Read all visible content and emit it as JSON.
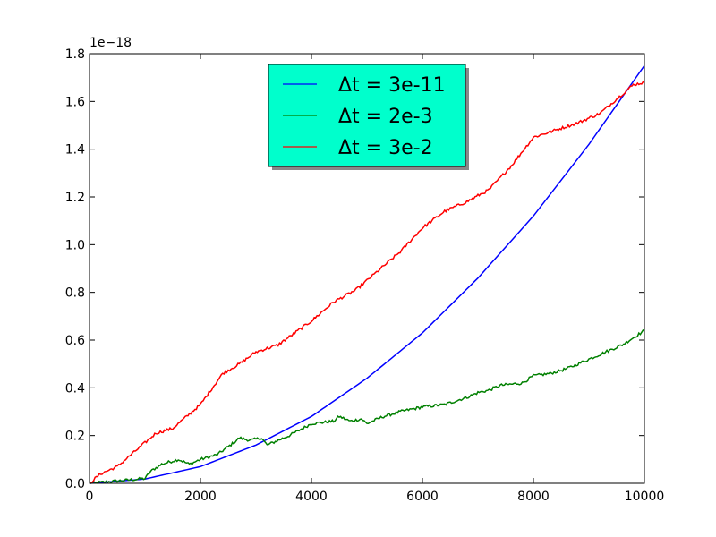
{
  "chart_data": {
    "type": "line",
    "title": "",
    "xlabel": "",
    "ylabel": "",
    "offset_text": "1e−18",
    "xlim": [
      0,
      10000
    ],
    "ylim": [
      0,
      1.8
    ],
    "x_ticks": [
      0,
      2000,
      4000,
      6000,
      8000,
      10000
    ],
    "x_tick_labels": [
      "0",
      "2000",
      "4000",
      "6000",
      "8000",
      "10000"
    ],
    "y_ticks": [
      0,
      0.2,
      0.4,
      0.6,
      0.8,
      1.0,
      1.2,
      1.4,
      1.6,
      1.8
    ],
    "y_tick_labels": [
      "0.0",
      "0.2",
      "0.4",
      "0.6",
      "0.8",
      "1.0",
      "1.2",
      "1.4",
      "1.6",
      "1.8"
    ],
    "grid": false,
    "legend_position": "top-center",
    "legend_bg": "#00ffcc",
    "series": [
      {
        "name": "Δt = 3e-11",
        "color": "#0000ff",
        "x": [
          0,
          1000,
          2000,
          3000,
          4000,
          5000,
          6000,
          7000,
          8000,
          9000,
          10000
        ],
        "values": [
          0.0,
          0.018,
          0.07,
          0.16,
          0.28,
          0.44,
          0.63,
          0.86,
          1.12,
          1.42,
          1.75
        ]
      },
      {
        "name": "Δt = 2e-3",
        "color": "#008000",
        "x": [
          0,
          500,
          1000,
          1100,
          1300,
          1600,
          1800,
          2000,
          2300,
          2600,
          2700,
          2900,
          3100,
          3200,
          3600,
          4000,
          4400,
          4500,
          4700,
          4900,
          5000,
          5300,
          5600,
          6000,
          6400,
          6800,
          7000,
          7200,
          7400,
          7800,
          8000,
          8300,
          8600,
          8800,
          9200,
          9600,
          9800,
          10000
        ],
        "values": [
          0.0,
          0.01,
          0.02,
          0.05,
          0.08,
          0.1,
          0.08,
          0.1,
          0.12,
          0.17,
          0.19,
          0.18,
          0.19,
          0.16,
          0.2,
          0.25,
          0.26,
          0.28,
          0.26,
          0.27,
          0.25,
          0.28,
          0.3,
          0.32,
          0.33,
          0.36,
          0.38,
          0.39,
          0.41,
          0.42,
          0.45,
          0.46,
          0.48,
          0.5,
          0.54,
          0.58,
          0.61,
          0.64
        ]
      },
      {
        "name": "Δt = 3e-2",
        "color": "#ff0000",
        "x": [
          0,
          200,
          500,
          800,
          1200,
          1500,
          2000,
          2400,
          2700,
          3000,
          3400,
          3700,
          4000,
          4400,
          4800,
          5200,
          5600,
          6000,
          6400,
          6800,
          7200,
          7600,
          8000,
          8400,
          8800,
          9200,
          9600,
          9800,
          10000
        ],
        "values": [
          0.0,
          0.04,
          0.07,
          0.13,
          0.21,
          0.23,
          0.33,
          0.46,
          0.5,
          0.55,
          0.58,
          0.63,
          0.68,
          0.76,
          0.81,
          0.89,
          0.97,
          1.07,
          1.14,
          1.18,
          1.23,
          1.33,
          1.45,
          1.48,
          1.51,
          1.55,
          1.63,
          1.67,
          1.68
        ]
      }
    ]
  }
}
